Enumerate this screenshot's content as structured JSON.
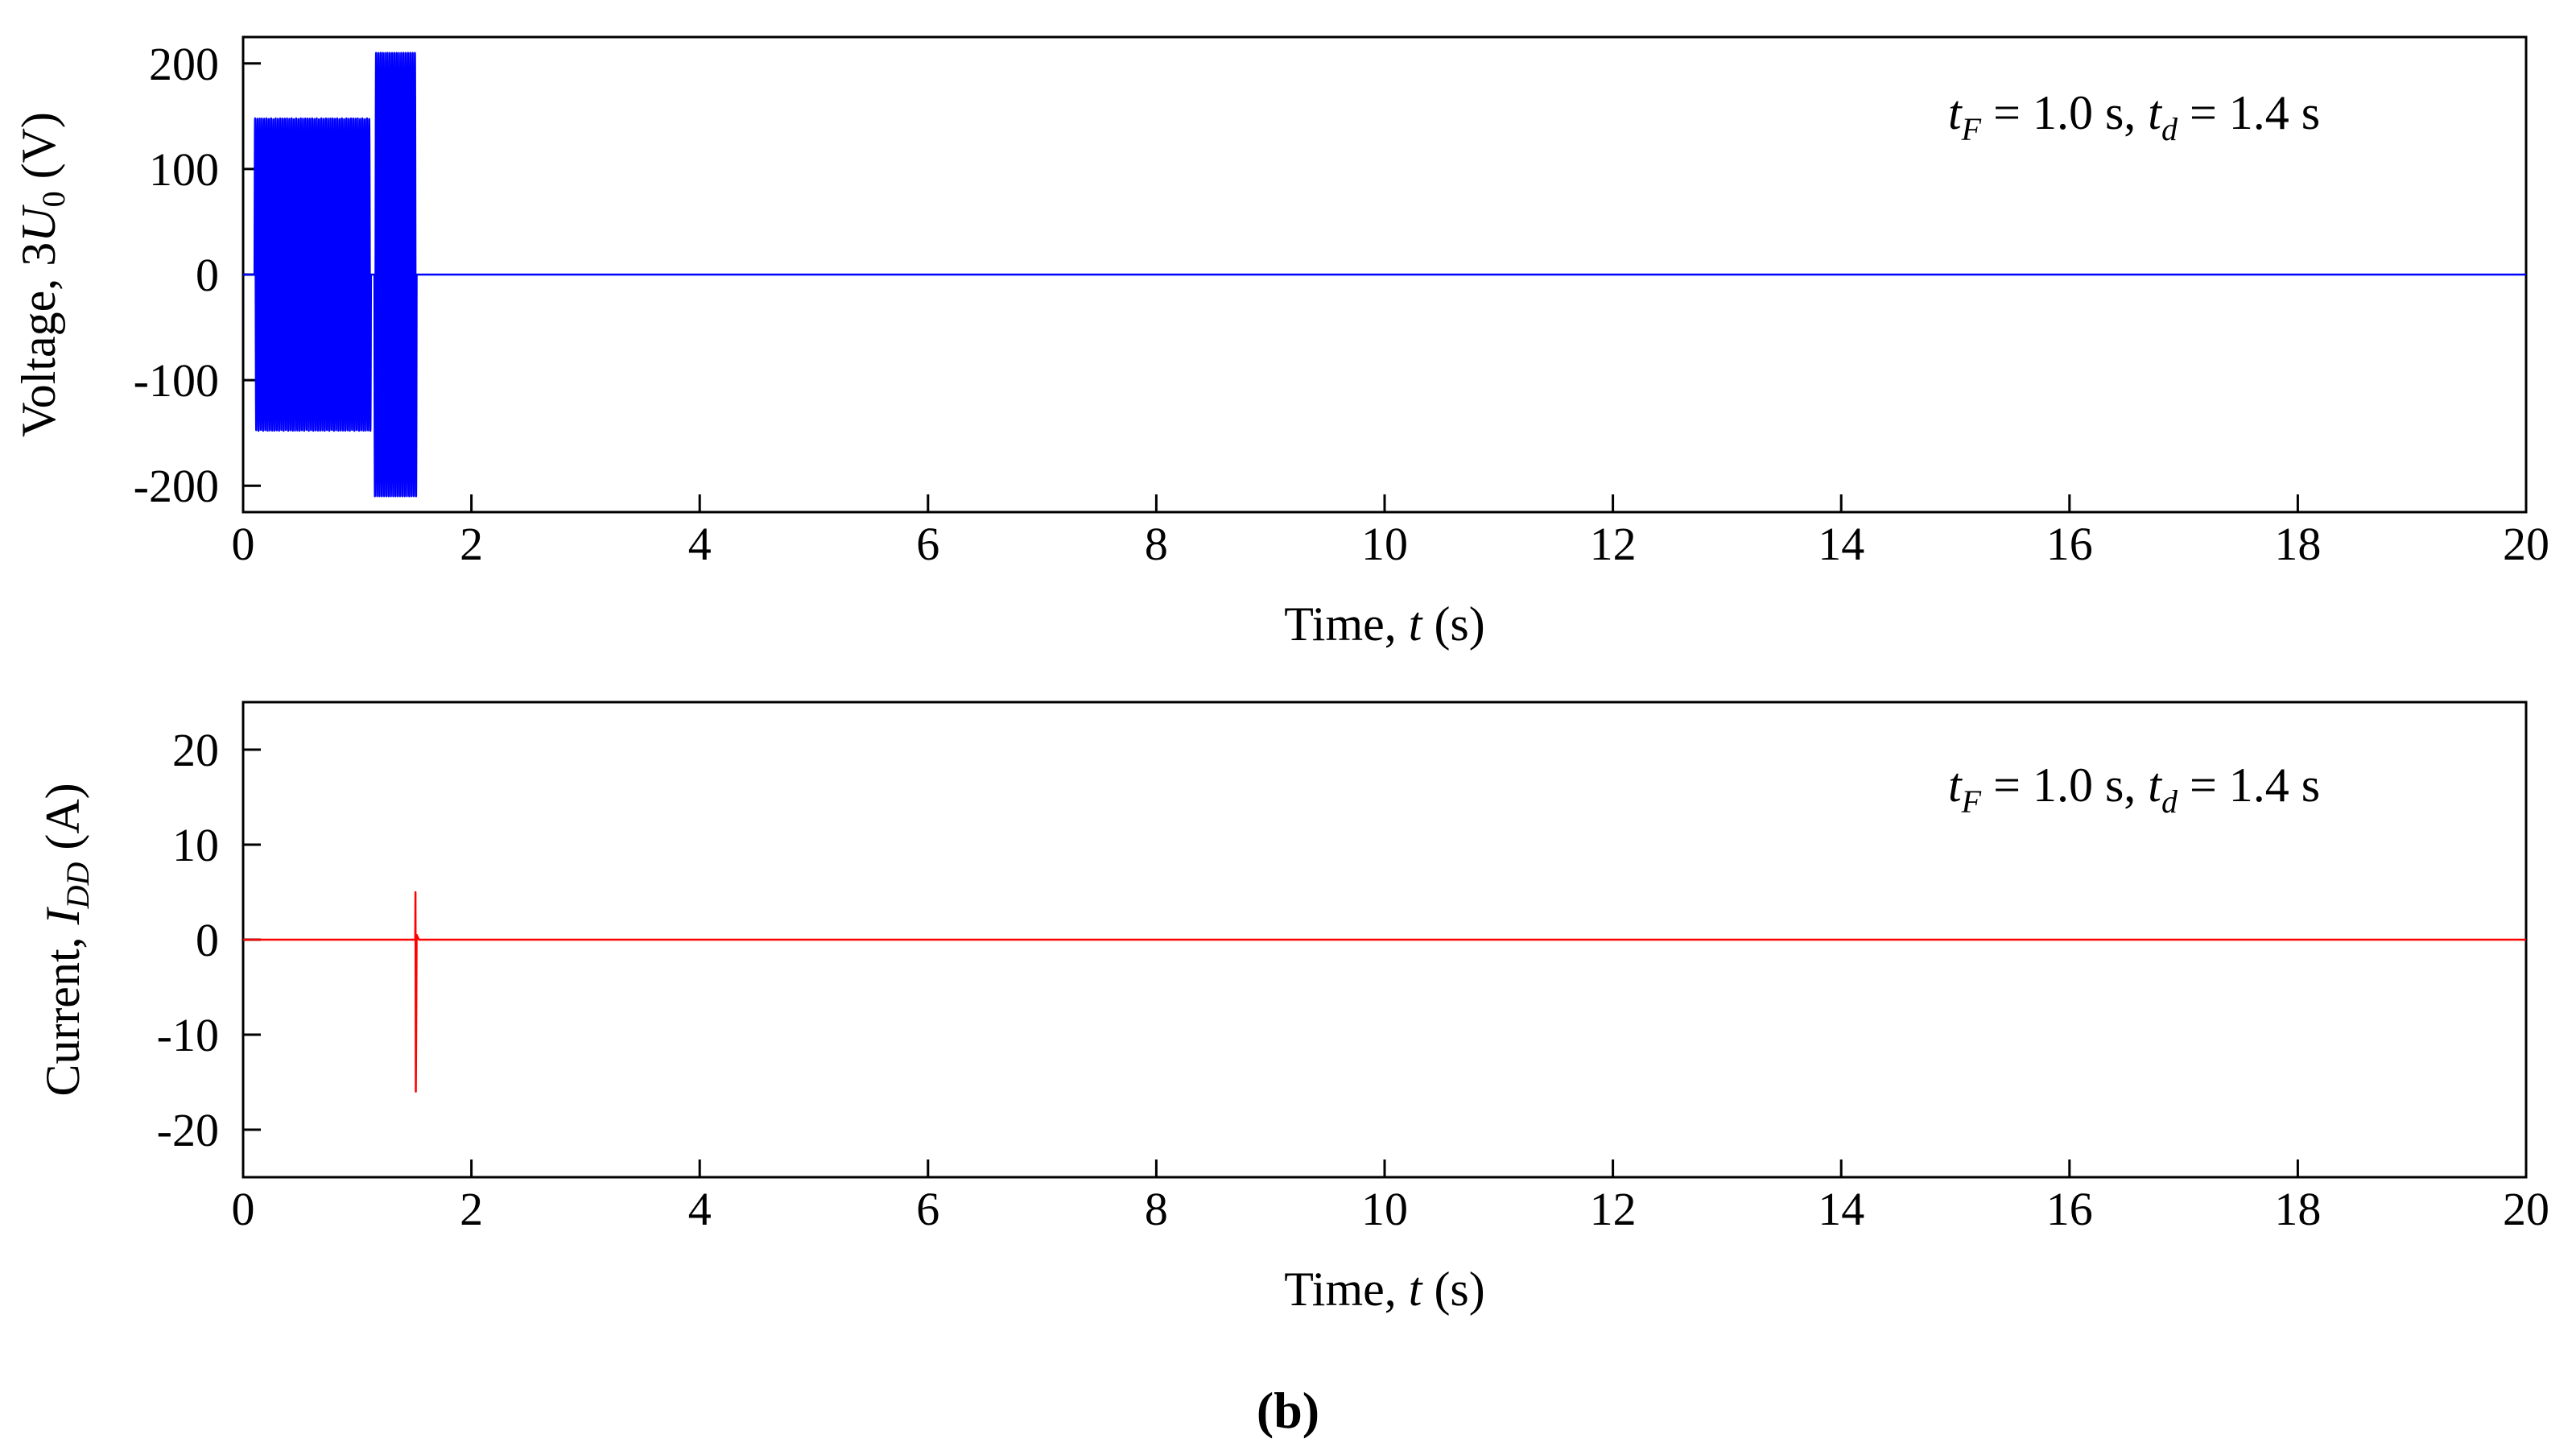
{
  "caption": "(b)",
  "colors": {
    "voltage": "#0000ff",
    "current": "#ff0000",
    "axis": "#000000"
  },
  "chart_data": [
    {
      "type": "line",
      "xlabel": {
        "prefix": "Time, ",
        "var": "t",
        "suffix": " (s)"
      },
      "ylabel": {
        "prefix": "Voltage, 3",
        "var": "U",
        "sub": "0",
        "suffix": " (V)"
      },
      "annotation": {
        "a_var": "t",
        "a_sub": "F",
        "a_mid": " = 1.0 s, ",
        "b_var": "t",
        "b_sub": "d",
        "b_end": " = 1.4 s"
      },
      "xlim": [
        0,
        20
      ],
      "ylim": [
        -225,
        225
      ],
      "xticks": [
        "0",
        "2",
        "4",
        "6",
        "8",
        "10",
        "12",
        "14",
        "16",
        "18",
        "20"
      ],
      "xtick_values": [
        0,
        2,
        4,
        6,
        8,
        10,
        12,
        14,
        16,
        18,
        20
      ],
      "yticks": [
        "200",
        "100",
        "0",
        "-100",
        "-200"
      ],
      "ytick_values": [
        200,
        100,
        0,
        -100,
        -200
      ],
      "grid": false,
      "series": [
        {
          "color": "#0000ff",
          "segments": [
            {
              "x_start": 0.1,
              "x_end": 1.12,
              "amplitude": 148,
              "frequency_hz": 50
            },
            {
              "x_start": 1.15,
              "x_end": 1.52,
              "amplitude": 210,
              "frequency_hz": 50
            }
          ],
          "baseline": 0,
          "x_end": 20
        }
      ]
    },
    {
      "type": "line",
      "xlabel": {
        "prefix": "Time, ",
        "var": "t",
        "suffix": " (s)"
      },
      "ylabel": {
        "prefix": "Current, ",
        "var": "I",
        "sub": "DD",
        "suffix": " (A)"
      },
      "annotation": {
        "a_var": "t",
        "a_sub": "F",
        "a_mid": " = 1.0 s, ",
        "b_var": "t",
        "b_sub": "d",
        "b_end": " = 1.4 s"
      },
      "xlim": [
        0,
        20
      ],
      "ylim": [
        -25,
        25
      ],
      "xticks": [
        "0",
        "2",
        "4",
        "6",
        "8",
        "10",
        "12",
        "14",
        "16",
        "18",
        "20"
      ],
      "xtick_values": [
        0,
        2,
        4,
        6,
        8,
        10,
        12,
        14,
        16,
        18,
        20
      ],
      "yticks": [
        "20",
        "10",
        "0",
        "-10",
        "-20"
      ],
      "ytick_values": [
        20,
        10,
        0,
        -10,
        -20
      ],
      "grid": false,
      "series": [
        {
          "color": "#ff0000",
          "spike": {
            "x": 1.51,
            "max": 5,
            "min": -16
          },
          "baseline": 0,
          "x_end": 20
        }
      ]
    }
  ]
}
